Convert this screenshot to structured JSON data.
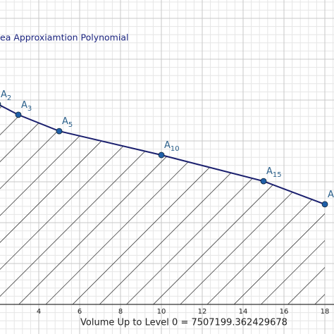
{
  "chart_data": {
    "type": "area",
    "title": "ea Approxiamtion Polynomial",
    "footer": "Volume Up to Level 0 = 7507199.362429678",
    "x": [
      2,
      3,
      5,
      10,
      15,
      18
    ],
    "values": [
      9.8,
      9.28,
      8.48,
      7.31,
      6.03,
      4.9
    ],
    "point_labels": [
      {
        "letter": "A",
        "index": "2"
      },
      {
        "letter": "A",
        "index": "3"
      },
      {
        "letter": "A",
        "index": "5"
      },
      {
        "letter": "A",
        "index": "10"
      },
      {
        "letter": "A",
        "index": "15"
      },
      {
        "letter": "A"
      }
    ],
    "color": "#1a1f6e",
    "point_color": "#1f5fa8",
    "xlim": [
      2.103,
      18.448
    ],
    "ylim": [
      -1.448,
      14.897
    ],
    "xticks": [
      4,
      6,
      8,
      10,
      12,
      14,
      16,
      18
    ],
    "grid": true
  }
}
